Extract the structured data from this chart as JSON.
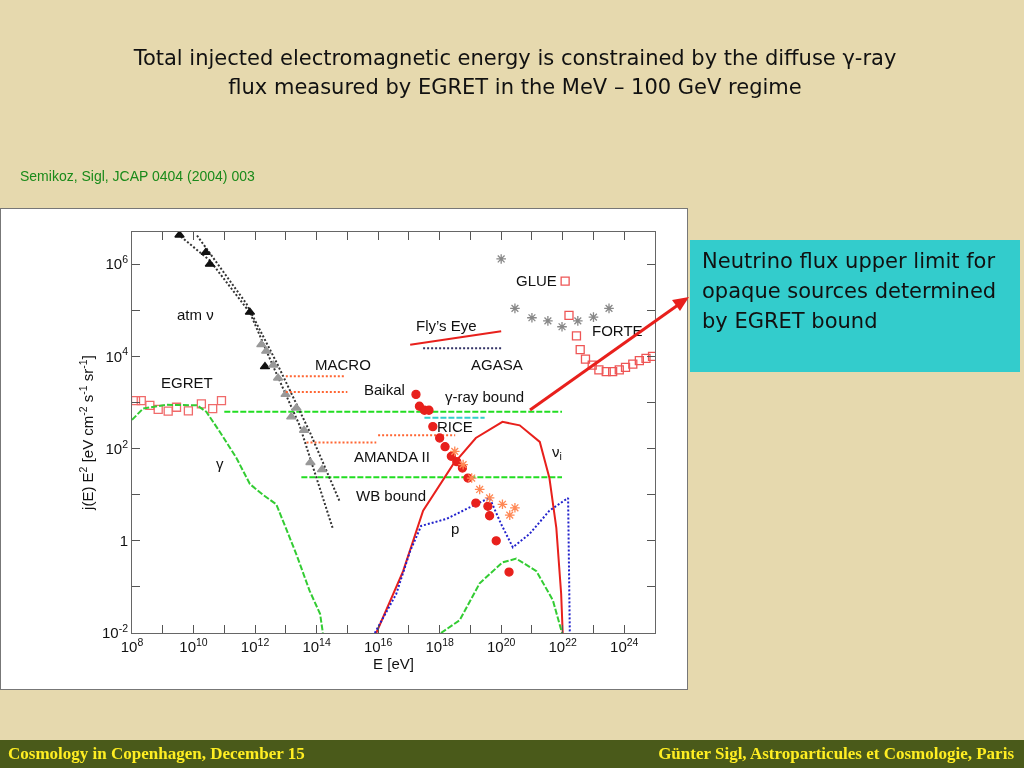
{
  "chart_data": {
    "type": "line",
    "title": "Total injected electromagnetic energy is constrained by the diffuse γ-ray flux measured by EGRET in the MeV – 100 GeV regime",
    "subtitle": "Semikoz, Sigl, JCAP 0404 (2004) 003",
    "xlabel": "E [eV]",
    "ylabel": "j(E) E$^{2}$ [eV cm$^{-2}$ s$^{-1}$ sr$^{-1}$]",
    "log": "xy",
    "grid": false,
    "xlim": [
      100000000.0,
      1e+25
    ],
    "ylim": [
      0.01,
      5000000.0
    ],
    "xticks": [
      {
        "value": 100000000.0,
        "label": "10$^{8}$"
      },
      {
        "value": 1000000000.0,
        "label": null
      },
      {
        "value": 10000000000.0,
        "label": "10$^{10}$"
      },
      {
        "value": 100000000000.0,
        "label": null
      },
      {
        "value": 1000000000000.0,
        "label": "10$^{12}$"
      },
      {
        "value": 10000000000000.0,
        "label": null
      },
      {
        "value": 100000000000000.0,
        "label": "10$^{14}$"
      },
      {
        "value": 1000000000000000.0,
        "label": null
      },
      {
        "value": 1e+16,
        "label": "10$^{16}$"
      },
      {
        "value": 1e+17,
        "label": null
      },
      {
        "value": 1e+18,
        "label": "10$^{18}$"
      },
      {
        "value": 1e+19,
        "label": null
      },
      {
        "value": 1e+20,
        "label": "10$^{20}$"
      },
      {
        "value": 1e+21,
        "label": null
      },
      {
        "value": 1e+22,
        "label": "10$^{22}$"
      },
      {
        "value": 1e+23,
        "label": null
      },
      {
        "value": 1e+24,
        "label": "10$^{24}$"
      }
    ],
    "yticks": [
      {
        "value": 0.01,
        "label": "10$^{-2}$"
      },
      {
        "value": 0.1,
        "label": null
      },
      1,
      {
        "value": 10,
        "label": null
      },
      {
        "value": 100,
        "label": "10$^{2}$"
      },
      {
        "value": 1000,
        "label": null
      },
      {
        "value": 10000,
        "label": "10$^{4}$"
      },
      {
        "value": 100000,
        "label": null
      },
      {
        "value": 1000000,
        "label": "10$^{6}$"
      }
    ],
    "series": [
      {
        "type": "scatter",
        "marker": "square",
        "color": "#f06a6a",
        "x": [
          130000000.0,
          200000000.0,
          380000000.0,
          710000000.0,
          1500000000.0,
          2800000000.0,
          6800000000.0,
          18000000000.0,
          42000000000.0,
          81000000000.0
        ],
        "values": [
          1100,
          1100,
          870,
          710,
          650,
          790,
          660,
          930,
          740,
          1100
        ]
      },
      {
        "line_style": "dashed",
        "color": "#33cc33",
        "x": [
          100000000.0,
          230000000.0,
          1300000000.0,
          13000000000.0,
          26000000000.0,
          72000000000.0,
          250000000000.0,
          680000000000.0,
          1800000000000.0,
          4900000000000.0,
          10000000000000.0,
          22000000000000.0,
          59000000000000.0,
          130000000000000.0,
          160000000000000.0
        ],
        "values": [
          420,
          740,
          890,
          870,
          630,
          230,
          62,
          17,
          10,
          6.2,
          1.9,
          0.51,
          0.083,
          0.026,
          0.01
        ]
      },
      {
        "line_style": "dashed",
        "color": "#22dd22",
        "x": [
          100000000000.0,
          9.5e+21
        ],
        "values": [
          630,
          630
        ]
      },
      {
        "type": "line",
        "line_style": "dashed",
        "color": "#22dd22",
        "x": [
          32000000000000.0,
          9.5e+21
        ],
        "values": [
          24,
          24
        ]
      },
      {
        "type": "line",
        "line_style": "dotted",
        "color": "#333333",
        "x": [
          3100000000.0,
          34000000000.0,
          680000000000.0,
          3800000000000.0,
          28000000000000.0,
          340000000000000.0
        ],
        "values": [
          4500000.0,
          1200000.0,
          89000.0,
          6300,
          320,
          1.8
        ]
      },
      {
        "type": "line",
        "line_style": "dotted",
        "color": "#333333",
        "x": [
          13000000000.0,
          520000000000.0,
          5000000000000.0,
          60000000000000.0,
          560000000000000.0
        ],
        "values": [
          4200000.0,
          140000.0,
          7400,
          230,
          7.2
        ]
      },
      {
        "type": "scatter",
        "marker": "triangle",
        "color": "#111111",
        "x": [
          3500000000.0,
          25000000000.0,
          34000000000.0,
          680000000000.0,
          2100000000000.0
        ],
        "values": [
          4300000.0,
          1800000.0,
          1000000.0,
          91000.0,
          6000
        ]
      },
      {
        "type": "scatter",
        "marker": "triangle",
        "color": "#999999",
        "x": [
          1600000000000.0,
          2300000000000.0,
          3900000000000.0,
          5600000000000.0,
          9800000000000.0,
          22000000000000.0,
          15000000000000.0,
          39000000000000.0,
          63000000000000.0,
          150000000000000.0
        ],
        "values": [
          18000.0,
          13000.0,
          6500,
          3400,
          1500,
          760,
          490,
          250,
          50,
          35
        ]
      },
      {
        "type": "line",
        "line_style": "dotted",
        "color": "#ff6633",
        "x": [
          10000000000000.0,
          830000000000000.0
        ],
        "values": [
          3700,
          3700
        ]
      },
      {
        "type": "line",
        "line_style": "dotted",
        "color": "#ff6633",
        "x": [
          10000000000000.0,
          1000000000000000.0
        ],
        "values": [
          1700,
          1700
        ]
      },
      {
        "type": "line",
        "line_style": "dotted",
        "color": "#ff6633",
        "x": [
          47000000000000.0,
          8700000000000000.0,
          null,
          1e+16,
          3.2e+18
        ],
        "values": [
          135,
          135,
          null,
          195,
          195
        ]
      },
      {
        "type": "line",
        "line_style": "dashed",
        "color": "#33cccc",
        "x": [
          3.2e+17,
          2.9e+19
        ],
        "values": [
          470,
          470
        ]
      },
      {
        "type": "line",
        "line_style": "solid",
        "color": "#e8201c",
        "x": [
          1.1e+17,
          1e+20
        ],
        "values": [
          18000.0,
          35000.0
        ]
      },
      {
        "type": "line",
        "line_style": "dotted",
        "color": "#333366",
        "x": [
          2.9e+17,
          1e+20
        ],
        "values": [
          15000.0,
          15000.0
        ]
      },
      {
        "type": "line",
        "line_style": "solid",
        "color": "#e8201c",
        "x": [
          8700000000000000.0,
          6.5e+16,
          2.9e+17,
          2.7e+18,
          1.5e+19,
          1.1e+20,
          4e+20,
          1.8e+21,
          3.7e+21,
          6.2e+21,
          8.9e+21,
          1e+22
        ],
        "values": [
          0.01,
          0.22,
          4.5,
          45,
          170,
          380,
          320,
          140,
          23,
          1.9,
          0.071,
          0.01
        ]
      },
      {
        "type": "line",
        "line_style": "dotted",
        "color": "#2222cc",
        "x": [
          7800000000000000.0,
          3.9e+16,
          1.1e+17,
          2.5e+17,
          1.7e+18,
          1.5e+19,
          4.2e+19,
          1e+20,
          2.4e+20,
          8.3e+20,
          3.7e+21,
          1.5e+22,
          1.7e+22
        ],
        "values": [
          0.01,
          0.071,
          0.6,
          2.1,
          3.0,
          6.2,
          8.5,
          2.3,
          0.72,
          1.4,
          4.5,
          8.5,
          0.01
        ]
      },
      {
        "type": "line",
        "line_style": "dashed",
        "color": "#33cc33",
        "x": [
          1.1e+18,
          4.5e+18,
          2e+19,
          1.1e+20,
          3.1e+20,
          1.4e+21,
          4.8e+21,
          9.5e+21
        ],
        "values": [
          0.01,
          0.019,
          0.12,
          0.34,
          0.41,
          0.22,
          0.051,
          0.01
        ]
      },
      {
        "type": "scatter",
        "marker": "circle",
        "color": "#e8201c",
        "x": [
          1.7e+17,
          2.2e+17,
          3.2e+17,
          4.5e+17,
          6e+17,
          1e+18,
          1.5e+18,
          2.4e+18,
          3.6e+18,
          5.5e+18,
          8.3e+18,
          1.5e+19,
          3.7e+19,
          4.2e+19,
          6.9e+19,
          1.8e+20
        ],
        "values": [
          1500,
          830,
          680,
          680,
          300,
          170,
          110,
          68,
          52,
          38,
          23,
          6.6,
          5.6,
          3.5,
          1.0,
          0.21
        ]
      },
      {
        "type": "scatter",
        "marker": "cross",
        "color": "#ff8855",
        "x": [
          3.1e+18,
          5.8e+18,
          1.1e+19,
          2e+19,
          4.2e+19,
          1.1e+20,
          1.9e+20,
          2.8e+20
        ],
        "values": [
          87,
          45,
          23,
          13,
          8.5,
          6.2,
          3.6,
          5.2
        ]
      },
      {
        "type": "scatter",
        "marker": "cross",
        "color": "#888888",
        "x": [
          1e+20,
          2.8e+20,
          1e+21,
          3.3e+21,
          9.5e+21,
          3.1e+22,
          1e+23,
          3.2e+23
        ],
        "values": [
          1300000.0,
          110000.0,
          69000.0,
          59000.0,
          44000.0,
          59000.0,
          71000.0,
          110000.0
        ]
      },
      {
        "type": "scatter",
        "marker": "square",
        "color": "#ee5555",
        "x": [
          1.2e+22,
          1.6e+22,
          2.8e+22,
          3.7e+22,
          5.5e+22,
          9.1e+22,
          1.5e+23,
          2.6e+23,
          4.2e+23,
          6.9e+23,
          1.1e+24,
          1.9e+24,
          3.1e+24,
          5.1e+24,
          8.3e+24
        ],
        "values": [
          430000.0,
          78000.0,
          28000.0,
          14000.0,
          8700,
          6500,
          5100,
          4700,
          4700,
          5100,
          5800,
          6800,
          8100,
          9100,
          10000.0
        ]
      }
    ],
    "annotations": [
      "atm ν",
      "EGRET",
      "γ",
      "MACRO",
      "Baikal",
      "AMANDA II",
      "WB bound",
      "Fly’s Eye",
      "AGASA",
      "γ-ray bound",
      "RICE",
      "ν$_{i}$",
      "p",
      "GLUE",
      "FORTE",
      "Neutrino flux upper limit for opaque sources determined by EGRET bound",
      "Cosmology in Copenhagen, December 15",
      "Günter Sigl, Astroparticules et Cosmologie, Paris"
    ]
  }
}
